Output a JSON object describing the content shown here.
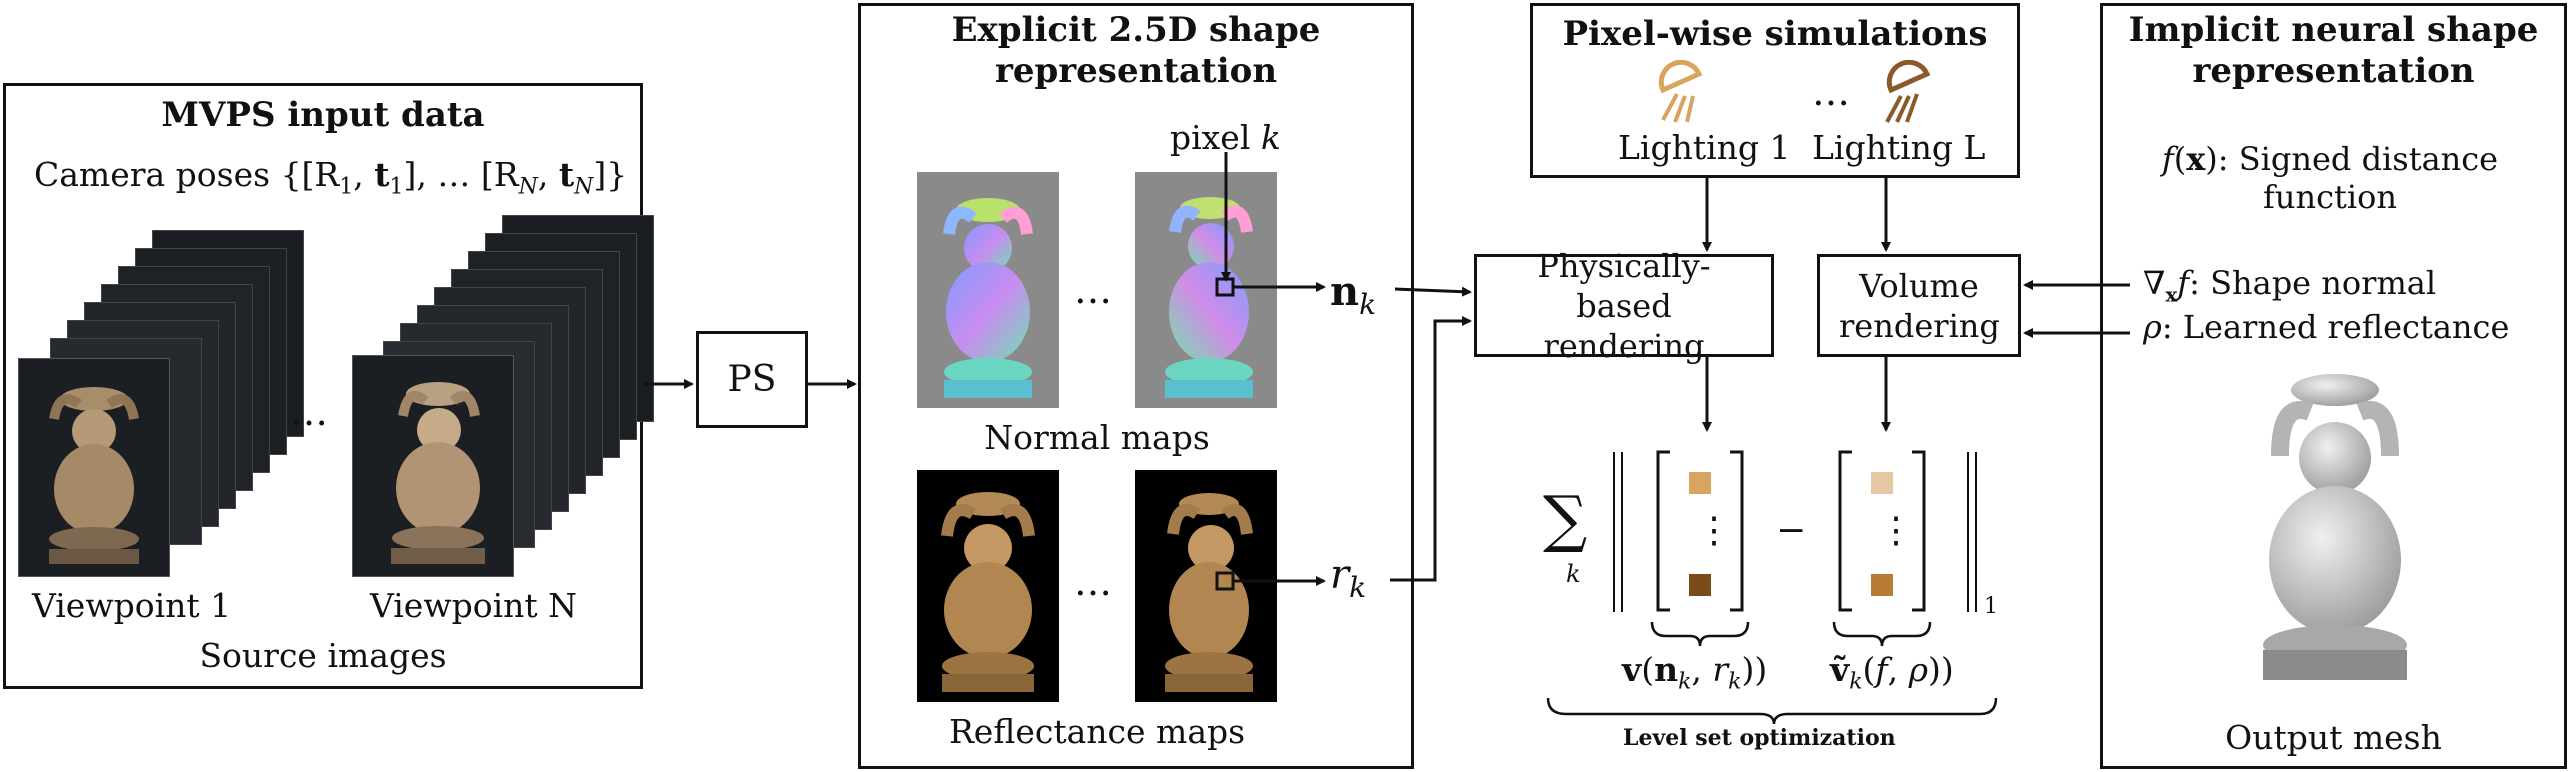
{
  "colors": {
    "line": "#111111",
    "bronze_light": "#d9a45f",
    "bronze_mid": "#b87a37",
    "bronze_dark": "#7a4a1b",
    "swatch_pale": "#e6c7a3",
    "mesh_gray": "#c8c8c8"
  },
  "mvps": {
    "title": "MVPS input data",
    "camera_label": "Camera poses {[R₁, t₁], … [R_N, t_N]}",
    "viewpoint1": "Viewpoint 1",
    "viewpointN": "Viewpoint N",
    "ellipsis": "…",
    "caption": "Source images"
  },
  "ps_box": {
    "label": "PS"
  },
  "explicit": {
    "title": "Explicit 2.5D shape representation",
    "pixel_label": "pixel k",
    "normal_caption": "Normal maps",
    "reflectance_caption": "Reflectance maps",
    "ellipsis": "…"
  },
  "labels": {
    "n_k": "n_k",
    "r_k": "r_k"
  },
  "pixel_sim": {
    "title": "Pixel-wise simulations",
    "lighting1": "Lighting 1",
    "lightingL": "Lighting L",
    "ellipsis": "…",
    "icons": [
      "spotlight-light-icon",
      "spotlight-dark-icon"
    ]
  },
  "physical_box": {
    "label": "Physically-based rendering"
  },
  "volume_box": {
    "label": "Volume rendering"
  },
  "implicit": {
    "title": "Implicit neural shape representation",
    "sdf_line": "f(x): Signed distance function",
    "normal_line": "∇ₓf: Shape normal",
    "reflectance_line": "ρ: Learned reflectance",
    "caption": "Output mesh"
  },
  "equation": {
    "sum": "∑",
    "sum_index": "k",
    "minus": "−",
    "norm_sub": "1",
    "v_label": "v(n_k, r_k))",
    "vtilde_label": "ṽ_k(f, ρ))",
    "vdots": "⋮",
    "caption": "Level set optimization"
  }
}
